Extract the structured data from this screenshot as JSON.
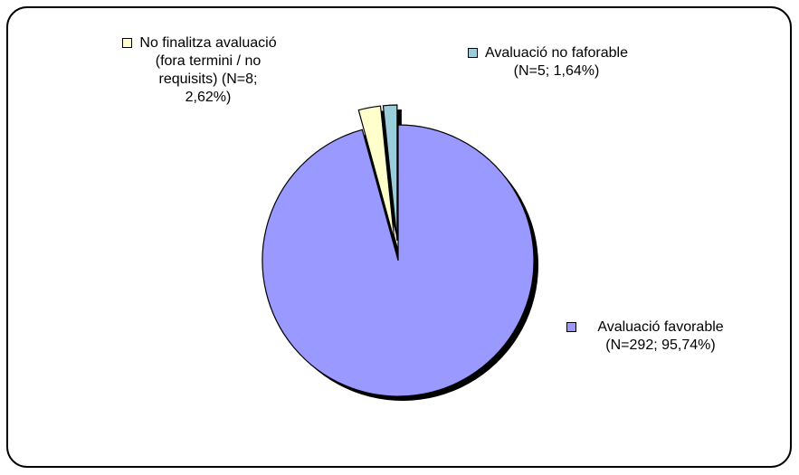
{
  "chart_data": {
    "type": "pie",
    "categories": [
      "Avaluació favorable",
      "No finalitza avaluació (fora termini / no requisits)",
      "Avaluació no faforable"
    ],
    "values": [
      95.74,
      2.62,
      1.64
    ],
    "value_labels": [
      "(N=292; 95,74%)",
      "(N=8; 2,62%)",
      "(N=5; 1,64%)"
    ],
    "colors": [
      "#9999ff",
      "#ffffcc",
      "#99cddb"
    ]
  }
}
